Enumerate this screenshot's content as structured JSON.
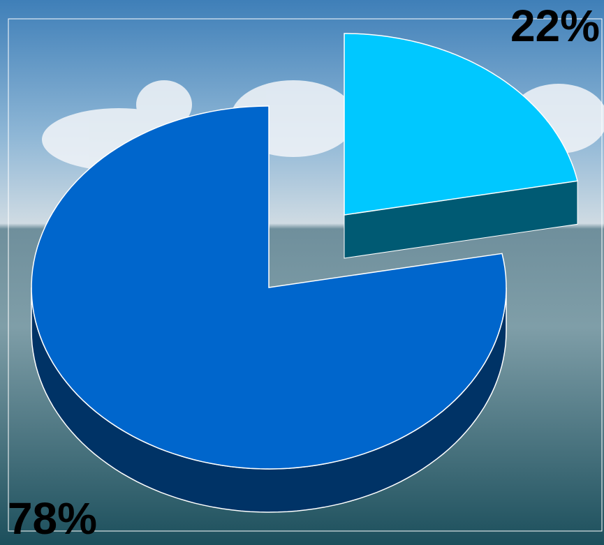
{
  "chart_data": {
    "type": "pie",
    "values": [
      22,
      78
    ],
    "value_labels": [
      "22%",
      "78%"
    ],
    "colors": [
      "#00c8ff",
      "#0066cc"
    ]
  }
}
